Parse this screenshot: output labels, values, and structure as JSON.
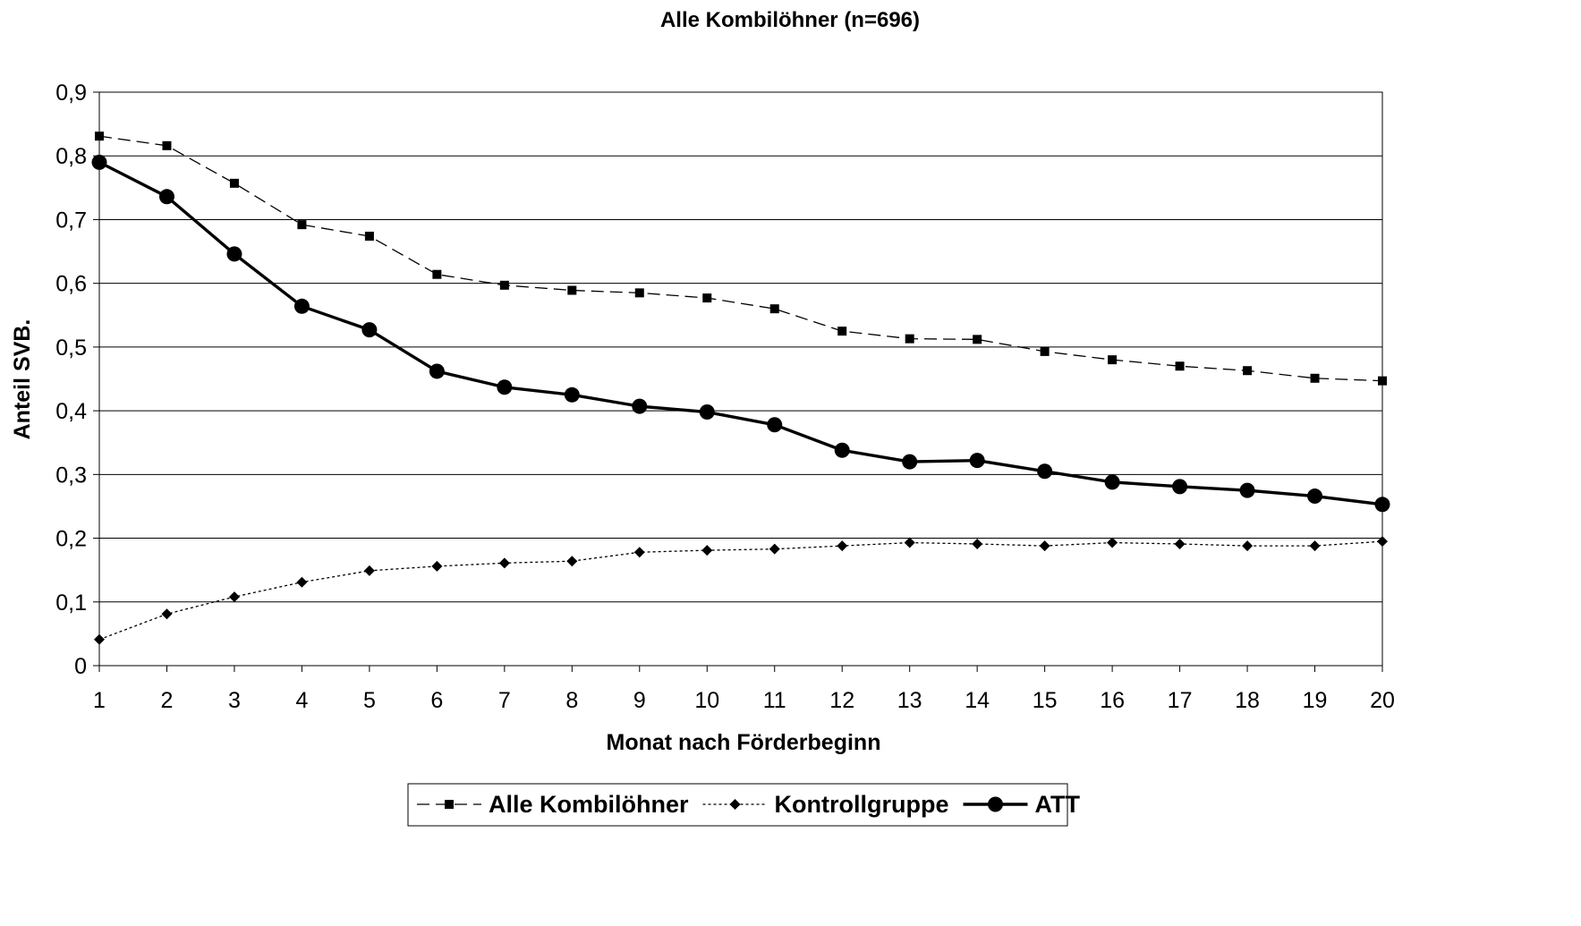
{
  "chart_data": {
    "type": "line",
    "title": "Alle Kombilöhner (n=696)",
    "xlabel": "Monat nach Förderbeginn",
    "ylabel": "Anteil SVB.",
    "categories": [
      "1",
      "2",
      "3",
      "4",
      "5",
      "6",
      "7",
      "8",
      "9",
      "10",
      "11",
      "12",
      "13",
      "14",
      "15",
      "16",
      "17",
      "18",
      "19",
      "20"
    ],
    "x": [
      1,
      2,
      3,
      4,
      5,
      6,
      7,
      8,
      9,
      10,
      11,
      12,
      13,
      14,
      15,
      16,
      17,
      18,
      19,
      20
    ],
    "ylim": [
      0,
      0.9
    ],
    "yticks": [
      0,
      0.1,
      0.2,
      0.3,
      0.4,
      0.5,
      0.6,
      0.7,
      0.8,
      0.9
    ],
    "ytick_labels": [
      "0",
      "0,1",
      "0,2",
      "0,3",
      "0,4",
      "0,5",
      "0,6",
      "0,7",
      "0,8",
      "0,9"
    ],
    "grid": "horizontal",
    "legend_position": "bottom",
    "series": [
      {
        "name": "Alle Kombilöhner",
        "line_style": "dashed",
        "marker": "square",
        "color": "#000000",
        "values": [
          0.831,
          0.816,
          0.757,
          0.692,
          0.674,
          0.614,
          0.597,
          0.589,
          0.585,
          0.577,
          0.56,
          0.525,
          0.513,
          0.512,
          0.493,
          0.48,
          0.47,
          0.463,
          0.451,
          0.447
        ]
      },
      {
        "name": "Kontrollgruppe",
        "line_style": "dotted",
        "marker": "diamond",
        "color": "#000000",
        "values": [
          0.041,
          0.081,
          0.108,
          0.131,
          0.149,
          0.156,
          0.161,
          0.164,
          0.178,
          0.181,
          0.183,
          0.188,
          0.193,
          0.191,
          0.188,
          0.193,
          0.191,
          0.188,
          0.188,
          0.195
        ]
      },
      {
        "name": "ATT",
        "line_style": "solid",
        "marker": "circle",
        "color": "#000000",
        "values": [
          0.79,
          0.736,
          0.646,
          0.564,
          0.527,
          0.462,
          0.437,
          0.425,
          0.407,
          0.398,
          0.378,
          0.338,
          0.32,
          0.322,
          0.305,
          0.288,
          0.281,
          0.275,
          0.266,
          0.253
        ]
      }
    ]
  }
}
